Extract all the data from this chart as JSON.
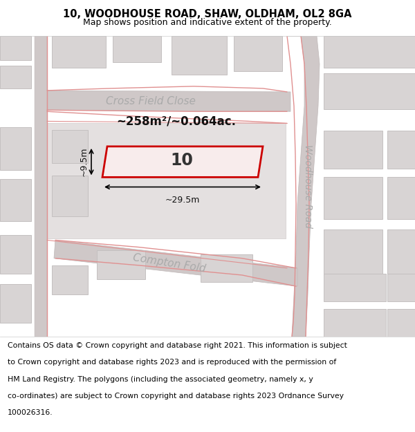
{
  "title": "10, WOODHOUSE ROAD, SHAW, OLDHAM, OL2 8GA",
  "subtitle": "Map shows position and indicative extent of the property.",
  "footer_lines": [
    "Contains OS data © Crown copyright and database right 2021. This information is subject",
    "to Crown copyright and database rights 2023 and is reproduced with the permission of",
    "HM Land Registry. The polygons (including the associated geometry, namely x, y",
    "co-ordinates) are subject to Crown copyright and database rights 2023 Ordnance Survey",
    "100026316."
  ],
  "map_bg": "#f2efef",
  "road_fill": "#cfc8c8",
  "road_edge": "#bfb8b8",
  "building_color": "#d8d4d4",
  "building_edge": "#c4c0c0",
  "plot_color": "#e4e0e0",
  "plot_edge": "#d0cccc",
  "highlight_color": "#cc0000",
  "highlight_fill": "#f8ecec",
  "pink_line": "#e09090",
  "road_label_color": "#aaaaaa",
  "dim_color": "#111111",
  "area_text": "~258m²/~0.064ac.",
  "property_label": "10",
  "dim_width": "~29.5m",
  "dim_height": "~9.5m",
  "cross_field_close": "Cross Field Close",
  "woodhouse_road": "Woodhouse Road",
  "compton_fold": "Compton Fold",
  "title_fontsize": 10.5,
  "subtitle_fontsize": 9,
  "footer_fontsize": 7.8,
  "road_label_fontsize": 11,
  "wr_label_fontsize": 10
}
